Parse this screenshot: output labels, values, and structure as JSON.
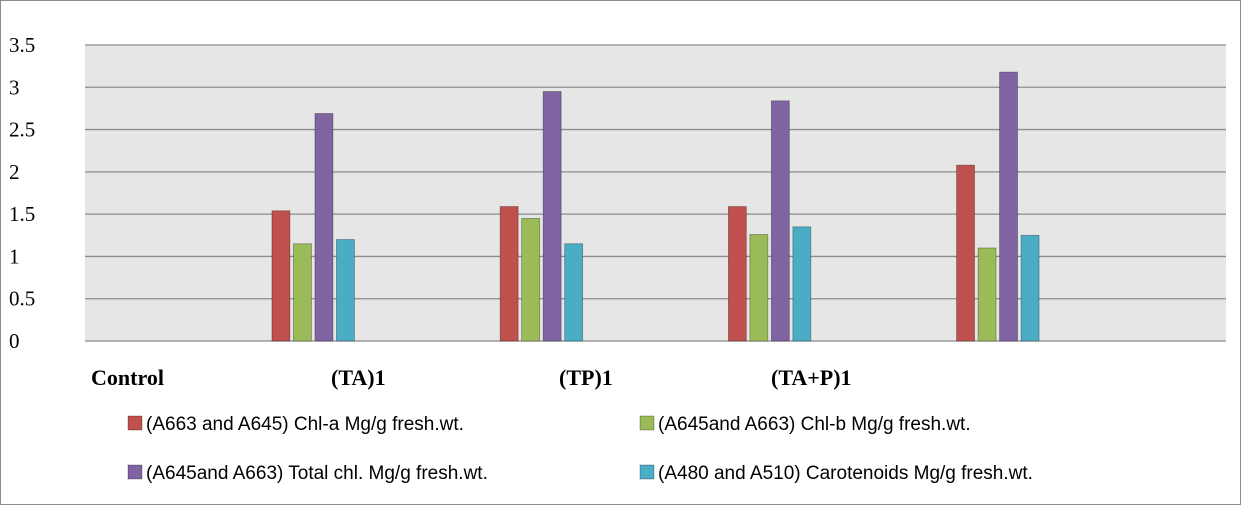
{
  "chart_data": {
    "type": "bar",
    "title": "",
    "xlabel": "",
    "ylabel": "",
    "ylim": [
      0,
      3.5
    ],
    "yticks": [
      "0",
      "0.5",
      "1",
      "1.5",
      "2",
      "2.5",
      "3",
      "3.5"
    ],
    "grid": true,
    "legend_position": "bottom",
    "categories": [
      "Control",
      "(TA)1",
      "(TP)1",
      "(TA+P)1"
    ],
    "bar_groups": [
      "Control",
      "(TA)1",
      "(TP)1",
      "(TA+P)1"
    ],
    "series": [
      {
        "name": "(A663 and A645)  Chl-a Mg/g fresh.wt.",
        "color": "#c0504d",
        "values": [
          1.54,
          1.59,
          1.59,
          2.08
        ]
      },
      {
        "name": "(A645and A663) Chl-b Mg/g fresh.wt.",
        "color": "#9bbb59",
        "values": [
          1.15,
          1.45,
          1.26,
          1.1
        ]
      },
      {
        "name": "(A645and A663) Total chl. Mg/g fresh.wt.",
        "color": "#8064a2",
        "values": [
          2.69,
          2.95,
          2.84,
          3.18
        ]
      },
      {
        "name": "(A480 and A510) Carotenoids Mg/g fresh.wt.",
        "color": "#4bacc6",
        "values": [
          1.2,
          1.15,
          1.35,
          1.25
        ]
      }
    ],
    "plot_background": "#e6e6e6",
    "gridline_color": "#8c8c8c"
  }
}
